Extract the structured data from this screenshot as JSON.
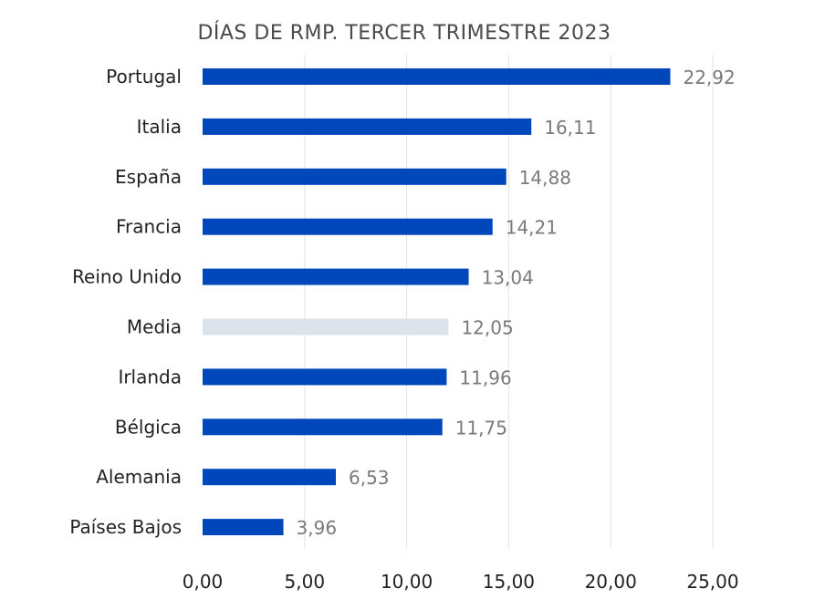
{
  "chart_data": {
    "type": "bar",
    "orientation": "horizontal",
    "title": "DÍAS DE RMP. TERCER TRIMESTRE 2023",
    "categories": [
      "Portugal",
      "Italia",
      "España",
      "Francia",
      "Reino Unido",
      "Media",
      "Irlanda",
      "Bélgica",
      "Alemania",
      "Países Bajos"
    ],
    "values": [
      22.92,
      16.11,
      14.88,
      14.21,
      13.04,
      12.05,
      11.96,
      11.75,
      6.53,
      3.96
    ],
    "value_labels": [
      "22,92",
      "16,11",
      "14,88",
      "14,21",
      "13,04",
      "12,05",
      "11,96",
      "11,75",
      "6,53",
      "3,96"
    ],
    "xticks": [
      0,
      5,
      10,
      15,
      20,
      25
    ],
    "xtick_labels": [
      "0,00",
      "5,00",
      "10,00",
      "15,00",
      "20,00",
      "25,00"
    ],
    "xlim": [
      0,
      25
    ],
    "grid": "vertical",
    "bar_color": "#0047BB",
    "highlight_color": "#DDE3EA",
    "highlight_category": "Media"
  }
}
